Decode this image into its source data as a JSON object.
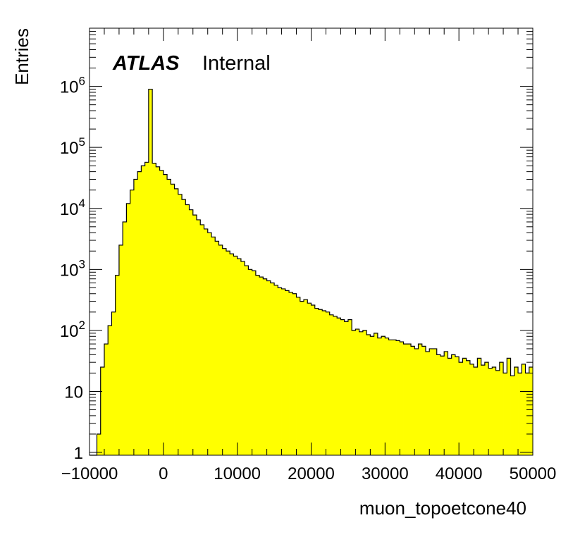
{
  "chart_data": {
    "type": "bar",
    "xlabel": "muon_topoetcone40",
    "ylabel": "Entries",
    "xlim": [
      -10000,
      50000
    ],
    "ylim": [
      0.9,
      9000000
    ],
    "y_scale": "log",
    "grid": false,
    "legend": "none",
    "x_ticks": [
      {
        "value": -10000,
        "label": "−10000"
      },
      {
        "value": 0,
        "label": "0"
      },
      {
        "value": 10000,
        "label": "10000"
      },
      {
        "value": 20000,
        "label": "20000"
      },
      {
        "value": 30000,
        "label": "30000"
      },
      {
        "value": 40000,
        "label": "40000"
      },
      {
        "value": 50000,
        "label": "50000"
      }
    ],
    "y_ticks": [
      {
        "value": 1,
        "base": "1",
        "exp": ""
      },
      {
        "value": 10,
        "base": "10",
        "exp": ""
      },
      {
        "value": 100,
        "base": "10",
        "exp": "2"
      },
      {
        "value": 1000,
        "base": "10",
        "exp": "3"
      },
      {
        "value": 10000,
        "base": "10",
        "exp": "4"
      },
      {
        "value": 100000,
        "base": "10",
        "exp": "5"
      },
      {
        "value": 1000000,
        "base": "10",
        "exp": "6"
      }
    ],
    "annotation": {
      "bold": "ATLAS",
      "text": "Internal"
    },
    "fill_color": "#ffff00",
    "line_color": "#000000",
    "series": [
      {
        "bin_edges_start": -10000,
        "bin_width": 500,
        "values": [
          0,
          0,
          2,
          25,
          60,
          120,
          200,
          800,
          2500,
          6000,
          12000,
          20000,
          30000,
          40000,
          50000,
          57000,
          900000,
          55000,
          48000,
          42000,
          36000,
          30000,
          25000,
          21000,
          17000,
          14000,
          11500,
          9500,
          7800,
          6500,
          5400,
          4600,
          4000,
          3400,
          2900,
          2500,
          2200,
          2000,
          1800,
          1650,
          1500,
          1350,
          1150,
          1000,
          950,
          800,
          750,
          700,
          650,
          600,
          550,
          500,
          480,
          450,
          420,
          400,
          350,
          300,
          320,
          280,
          260,
          230,
          220,
          210,
          200,
          180,
          170,
          160,
          150,
          140,
          150,
          100,
          105,
          95,
          100,
          85,
          80,
          90,
          75,
          80,
          75,
          70,
          70,
          68,
          65,
          60,
          60,
          55,
          50,
          60,
          55,
          45,
          50,
          50,
          40,
          38,
          45,
          35,
          40,
          37,
          30,
          35,
          32,
          28,
          25,
          35,
          27,
          30,
          24,
          25,
          22,
          30,
          20,
          35,
          18,
          25,
          20,
          28,
          20,
          25
        ]
      }
    ]
  }
}
